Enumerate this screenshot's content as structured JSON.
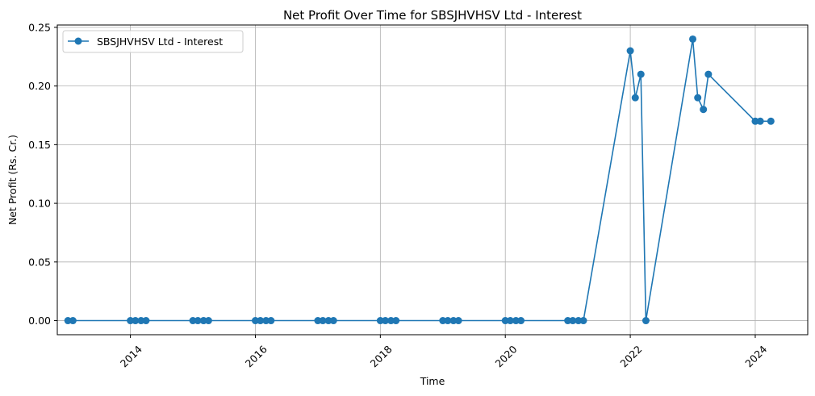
{
  "chart_data": {
    "type": "line",
    "title": "Net Profit Over Time for SBSJHVHSV Ltd - Interest",
    "xlabel": "Time",
    "ylabel": "Net Profit (Rs. Cr.)",
    "xlim": [
      2012.83,
      2024.84
    ],
    "ylim": [
      -0.012,
      0.252
    ],
    "xticks": [
      2014,
      2016,
      2018,
      2020,
      2022,
      2024
    ],
    "yticks": [
      "0.00",
      "0.05",
      "0.10",
      "0.15",
      "0.20",
      "0.25"
    ],
    "grid": true,
    "legend_position": "top-left",
    "series": [
      {
        "name": "SBSJHVHSV Ltd - Interest",
        "color": "#1f77b4",
        "points": [
          [
            2013.0,
            0
          ],
          [
            2013.08,
            0
          ],
          [
            2014.0,
            0
          ],
          [
            2014.08,
            0
          ],
          [
            2014.17,
            0
          ],
          [
            2014.25,
            0
          ],
          [
            2015.0,
            0
          ],
          [
            2015.08,
            0
          ],
          [
            2015.17,
            0
          ],
          [
            2015.25,
            0
          ],
          [
            2016.0,
            0
          ],
          [
            2016.08,
            0
          ],
          [
            2016.17,
            0
          ],
          [
            2016.25,
            0
          ],
          [
            2017.0,
            0
          ],
          [
            2017.08,
            0
          ],
          [
            2017.17,
            0
          ],
          [
            2017.25,
            0
          ],
          [
            2018.0,
            0
          ],
          [
            2018.08,
            0
          ],
          [
            2018.17,
            0
          ],
          [
            2018.25,
            0
          ],
          [
            2019.0,
            0
          ],
          [
            2019.08,
            0
          ],
          [
            2019.17,
            0
          ],
          [
            2019.25,
            0
          ],
          [
            2020.0,
            0
          ],
          [
            2020.08,
            0
          ],
          [
            2020.17,
            0
          ],
          [
            2020.25,
            0
          ],
          [
            2021.0,
            0
          ],
          [
            2021.08,
            0
          ],
          [
            2021.17,
            0
          ],
          [
            2021.25,
            0
          ],
          [
            2022.0,
            0.23
          ],
          [
            2022.08,
            0.19
          ],
          [
            2022.17,
            0.21
          ],
          [
            2022.25,
            0
          ],
          [
            2023.0,
            0.24
          ],
          [
            2023.08,
            0.19
          ],
          [
            2023.17,
            0.18
          ],
          [
            2023.25,
            0.21
          ],
          [
            2024.0,
            0.17
          ],
          [
            2024.08,
            0.17
          ],
          [
            2024.25,
            0.17
          ]
        ]
      }
    ]
  }
}
